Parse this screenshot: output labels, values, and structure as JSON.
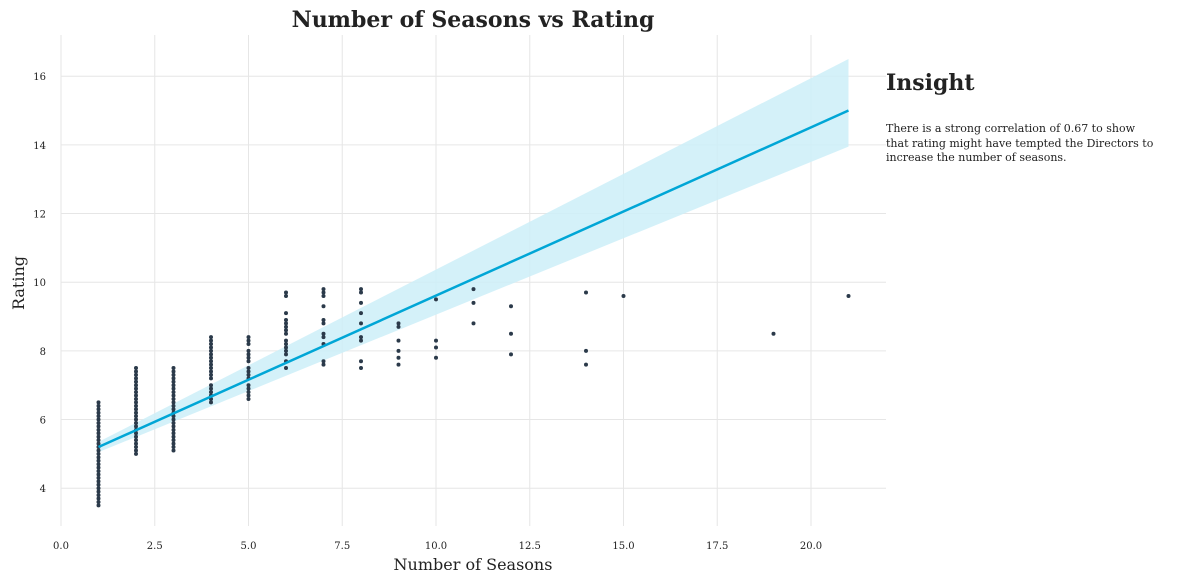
{
  "insight": {
    "title": "Insight",
    "text": "There is a strong correlation of 0.67 to show\n that rating might have tempted the Directors to\n increase the number of seasons."
  },
  "colors": {
    "points": "#2b3a4a",
    "regression_line": "#00a6d6",
    "confidence_band": "#cdeef8",
    "grid": "#e6e6e6"
  },
  "chart_data": {
    "type": "scatter",
    "title": "Number of Seasons vs Rating",
    "xlabel": "Number of Seasons",
    "ylabel": "Rating",
    "xlim": [
      0,
      22
    ],
    "ylim": [
      2.9,
      17.2
    ],
    "xticks": [
      "0.0",
      "2.5",
      "5.0",
      "7.5",
      "10.0",
      "12.5",
      "15.0",
      "17.5",
      "20.0"
    ],
    "yticks": [
      "4",
      "6",
      "8",
      "10",
      "12",
      "14",
      "16"
    ],
    "grid": true,
    "regression": {
      "x_range": [
        1,
        21
      ],
      "y_at_start": 5.2,
      "y_at_end": 15.0,
      "band_upper_at_start": 5.35,
      "band_lower_at_start": 5.05,
      "band_upper_at_end": 16.5,
      "band_lower_at_end": 13.95
    },
    "points": [
      {
        "x": 1,
        "y": [
          3.5,
          3.6,
          3.7,
          3.8,
          3.9,
          4.0,
          4.1,
          4.2,
          4.3,
          4.4,
          4.5,
          4.6,
          4.7,
          4.8,
          4.9,
          5.0,
          5.1,
          5.2,
          5.3,
          5.4,
          5.5,
          5.6,
          5.7,
          5.8,
          5.9,
          6.0,
          6.1,
          6.2,
          6.3,
          6.4,
          6.5
        ]
      },
      {
        "x": 2,
        "y": [
          5.0,
          5.1,
          5.2,
          5.3,
          5.4,
          5.5,
          5.6,
          5.7,
          5.8,
          5.9,
          6.0,
          6.1,
          6.2,
          6.3,
          6.4,
          6.5,
          6.6,
          6.7,
          6.8,
          6.9,
          7.0,
          7.1,
          7.2,
          7.3,
          7.4,
          7.5
        ]
      },
      {
        "x": 3,
        "y": [
          5.1,
          5.2,
          5.3,
          5.4,
          5.5,
          5.6,
          5.7,
          5.8,
          5.9,
          6.0,
          6.1,
          6.2,
          6.3,
          6.4,
          6.5,
          6.6,
          6.7,
          6.8,
          6.9,
          7.0,
          7.1,
          7.2,
          7.3,
          7.4,
          7.5
        ]
      },
      {
        "x": 4,
        "y": [
          6.5,
          6.6,
          6.7,
          6.8,
          6.9,
          7.0,
          7.2,
          7.3,
          7.4,
          7.5,
          7.6,
          7.7,
          7.8,
          7.9,
          8.0,
          8.1,
          8.2,
          8.3,
          8.4
        ]
      },
      {
        "x": 5,
        "y": [
          6.6,
          6.7,
          6.8,
          6.9,
          7.0,
          7.2,
          7.3,
          7.4,
          7.5,
          7.7,
          7.8,
          7.9,
          8.0,
          8.2,
          8.3,
          8.4
        ]
      },
      {
        "x": 6,
        "y": [
          7.5,
          7.7,
          7.9,
          8.0,
          8.1,
          8.2,
          8.3,
          8.5,
          8.6,
          8.7,
          8.8,
          8.9,
          9.1,
          9.6,
          9.7
        ]
      },
      {
        "x": 7,
        "y": [
          7.6,
          7.7,
          8.2,
          8.4,
          8.5,
          8.8,
          8.9,
          9.3,
          9.6,
          9.7,
          9.8
        ]
      },
      {
        "x": 8,
        "y": [
          7.5,
          7.7,
          8.3,
          8.4,
          8.8,
          9.1,
          9.4,
          9.7,
          9.8
        ]
      },
      {
        "x": 9,
        "y": [
          7.6,
          7.8,
          8.0,
          8.3,
          8.7,
          8.8
        ]
      },
      {
        "x": 10,
        "y": [
          7.8,
          8.1,
          8.3,
          9.5
        ]
      },
      {
        "x": 11,
        "y": [
          8.8,
          9.4,
          9.8
        ]
      },
      {
        "x": 12,
        "y": [
          7.9,
          8.5,
          9.3
        ]
      },
      {
        "x": 14,
        "y": [
          7.6,
          8.0,
          9.7
        ]
      },
      {
        "x": 15,
        "y": [
          9.6
        ]
      },
      {
        "x": 19,
        "y": [
          8.5
        ]
      },
      {
        "x": 21,
        "y": [
          9.6
        ]
      }
    ]
  }
}
